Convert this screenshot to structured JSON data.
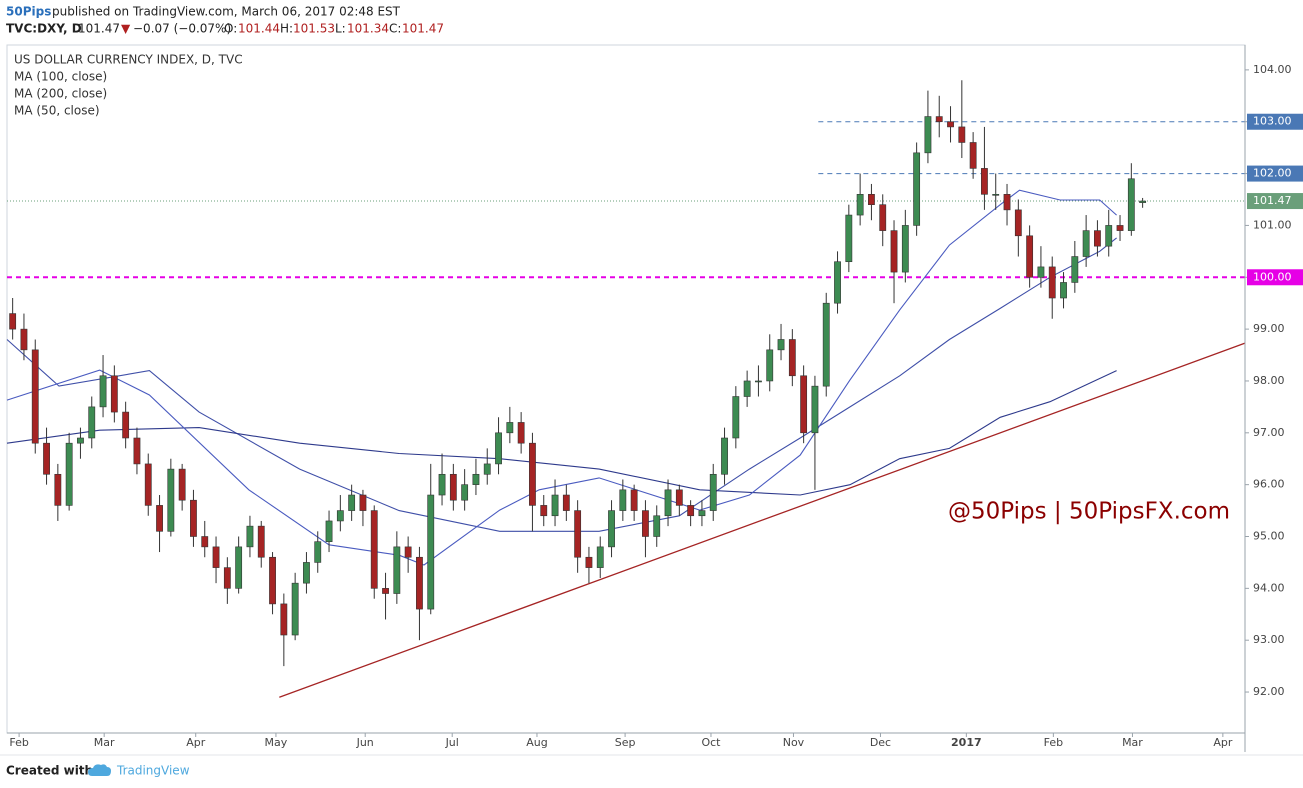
{
  "header": {
    "author": "50Pips",
    "published": "published on TradingView.com, March 06, 2017 02:48 EST",
    "symbol": "TVC:DXY, D",
    "arrow": "▼",
    "change": "−0.07 (−0.07%)",
    "open_label": "O:",
    "high_label": "H:",
    "low_label": "L:",
    "close_label": "C:"
  },
  "chart_data": {
    "type": "candlestick",
    "title": "US DOLLAR CURRENCY INDEX, D, TVC",
    "up_color": "#3d8b52",
    "down_color": "#a52424",
    "candles": [
      [
        99.3,
        99.6,
        98.8,
        99.0
      ],
      [
        99.0,
        99.3,
        98.4,
        98.6
      ],
      [
        98.6,
        98.8,
        96.6,
        96.8
      ],
      [
        96.8,
        97.1,
        96.0,
        96.2
      ],
      [
        96.2,
        96.4,
        95.3,
        95.6
      ],
      [
        95.6,
        97.0,
        95.5,
        96.8
      ],
      [
        96.8,
        97.1,
        96.5,
        96.9
      ],
      [
        96.9,
        97.7,
        96.7,
        97.5
      ],
      [
        97.5,
        98.5,
        97.3,
        98.1
      ],
      [
        98.1,
        98.3,
        97.2,
        97.4
      ],
      [
        97.4,
        97.6,
        96.7,
        96.9
      ],
      [
        96.9,
        97.1,
        96.2,
        96.4
      ],
      [
        96.4,
        96.6,
        95.4,
        95.6
      ],
      [
        95.6,
        95.8,
        94.7,
        95.1
      ],
      [
        95.1,
        96.5,
        95.0,
        96.3
      ],
      [
        96.3,
        96.4,
        95.5,
        95.7
      ],
      [
        95.7,
        95.9,
        94.8,
        95.0
      ],
      [
        95.0,
        95.3,
        94.6,
        94.8
      ],
      [
        94.8,
        95.0,
        94.1,
        94.4
      ],
      [
        94.4,
        94.6,
        93.7,
        94.0
      ],
      [
        94.0,
        95.0,
        93.9,
        94.8
      ],
      [
        94.8,
        95.4,
        94.6,
        95.2
      ],
      [
        95.2,
        95.3,
        94.4,
        94.6
      ],
      [
        94.6,
        94.7,
        93.5,
        93.7
      ],
      [
        93.7,
        93.9,
        92.5,
        93.1
      ],
      [
        93.1,
        94.3,
        93.0,
        94.1
      ],
      [
        94.1,
        94.7,
        93.9,
        94.5
      ],
      [
        94.5,
        95.1,
        94.3,
        94.9
      ],
      [
        94.9,
        95.5,
        94.7,
        95.3
      ],
      [
        95.3,
        95.8,
        95.1,
        95.5
      ],
      [
        95.5,
        96.0,
        95.3,
        95.8
      ],
      [
        95.8,
        95.9,
        95.2,
        95.5
      ],
      [
        95.5,
        95.6,
        93.8,
        94.0
      ],
      [
        94.0,
        94.3,
        93.4,
        93.9
      ],
      [
        93.9,
        95.1,
        93.7,
        94.8
      ],
      [
        94.8,
        95.0,
        94.3,
        94.6
      ],
      [
        94.6,
        94.8,
        93.0,
        93.6
      ],
      [
        93.6,
        96.4,
        93.5,
        95.8
      ],
      [
        95.8,
        96.6,
        95.6,
        96.2
      ],
      [
        96.2,
        96.4,
        95.5,
        95.7
      ],
      [
        95.7,
        96.3,
        95.5,
        96.0
      ],
      [
        96.0,
        96.5,
        95.8,
        96.2
      ],
      [
        96.2,
        96.7,
        96.0,
        96.4
      ],
      [
        96.4,
        97.3,
        96.2,
        97.0
      ],
      [
        97.0,
        97.5,
        96.8,
        97.2
      ],
      [
        97.2,
        97.4,
        96.6,
        96.8
      ],
      [
        96.8,
        97.0,
        95.1,
        95.6
      ],
      [
        95.6,
        95.8,
        95.2,
        95.4
      ],
      [
        95.4,
        96.1,
        95.2,
        95.8
      ],
      [
        95.8,
        96.0,
        95.3,
        95.5
      ],
      [
        95.5,
        95.7,
        94.3,
        94.6
      ],
      [
        94.6,
        94.8,
        94.1,
        94.4
      ],
      [
        94.4,
        95.0,
        94.2,
        94.8
      ],
      [
        94.8,
        95.7,
        94.6,
        95.5
      ],
      [
        95.5,
        96.1,
        95.3,
        95.9
      ],
      [
        95.9,
        96.0,
        95.3,
        95.5
      ],
      [
        95.5,
        95.7,
        94.6,
        95.0
      ],
      [
        95.0,
        95.6,
        94.8,
        95.4
      ],
      [
        95.4,
        96.1,
        95.2,
        95.9
      ],
      [
        95.9,
        96.0,
        95.4,
        95.6
      ],
      [
        95.6,
        95.7,
        95.2,
        95.4
      ],
      [
        95.4,
        95.7,
        95.2,
        95.5
      ],
      [
        95.5,
        96.4,
        95.3,
        96.2
      ],
      [
        96.2,
        97.1,
        96.0,
        96.9
      ],
      [
        96.9,
        97.9,
        96.7,
        97.7
      ],
      [
        97.7,
        98.2,
        97.5,
        98.0
      ],
      [
        98.0,
        98.3,
        97.7,
        98.0
      ],
      [
        98.0,
        98.9,
        97.8,
        98.6
      ],
      [
        98.6,
        99.1,
        98.4,
        98.8
      ],
      [
        98.8,
        99.0,
        97.9,
        98.1
      ],
      [
        98.1,
        98.3,
        96.8,
        97.0
      ],
      [
        97.0,
        98.1,
        95.9,
        97.9
      ],
      [
        97.9,
        99.7,
        97.7,
        99.5
      ],
      [
        99.5,
        100.5,
        99.3,
        100.3
      ],
      [
        100.3,
        101.4,
        100.1,
        101.2
      ],
      [
        101.2,
        102.0,
        101.0,
        101.6
      ],
      [
        101.6,
        101.8,
        101.1,
        101.4
      ],
      [
        101.4,
        101.6,
        100.6,
        100.9
      ],
      [
        100.9,
        101.1,
        99.5,
        100.1
      ],
      [
        100.1,
        101.3,
        99.9,
        101.0
      ],
      [
        101.0,
        102.6,
        100.8,
        102.4
      ],
      [
        102.4,
        103.6,
        102.2,
        103.1
      ],
      [
        103.1,
        103.5,
        102.7,
        103.0
      ],
      [
        103.0,
        103.3,
        102.6,
        102.9
      ],
      [
        102.9,
        103.8,
        102.3,
        102.6
      ],
      [
        102.6,
        102.8,
        101.9,
        102.1
      ],
      [
        102.1,
        102.9,
        101.3,
        101.6
      ],
      [
        101.6,
        102.0,
        101.3,
        101.6
      ],
      [
        101.6,
        101.8,
        101.0,
        101.3
      ],
      [
        101.3,
        101.5,
        100.4,
        100.8
      ],
      [
        100.8,
        101.0,
        99.8,
        100.0
      ],
      [
        100.0,
        100.6,
        99.8,
        100.2
      ],
      [
        100.2,
        100.4,
        99.2,
        99.6
      ],
      [
        99.6,
        100.1,
        99.4,
        99.9
      ],
      [
        99.9,
        100.7,
        99.7,
        100.4
      ],
      [
        100.4,
        101.2,
        100.2,
        100.9
      ],
      [
        100.9,
        101.1,
        100.4,
        100.6
      ],
      [
        100.6,
        101.3,
        100.4,
        101.0
      ],
      [
        101.0,
        101.2,
        100.7,
        100.9
      ],
      [
        100.9,
        102.2,
        100.8,
        101.9
      ],
      [
        101.44,
        101.53,
        101.34,
        101.47
      ]
    ],
    "series": [
      {
        "name": "MA (100, close)",
        "color": "#3f4fa8",
        "x": [
          -0.5,
          4.1,
          12.1,
          16.5,
          25.4,
          34.2,
          43.1,
          51.9,
          59.0,
          65.2,
          69.7,
          74.1,
          78.5,
          82.9,
          87.4,
          91.8,
          96.2,
          97.7
        ],
        "values": [
          98.8,
          97.9,
          98.2,
          97.4,
          96.3,
          95.5,
          95.1,
          95.1,
          95.4,
          96.3,
          96.9,
          97.5,
          98.1,
          98.8,
          99.4,
          100.0,
          100.5,
          100.76
        ]
      },
      {
        "name": "MA (200, close)",
        "color": "#2e3a8c",
        "x": [
          -0.5,
          7.7,
          16.5,
          25.4,
          34.2,
          43.1,
          51.9,
          60.8,
          69.7,
          74.1,
          78.5,
          82.9,
          87.4,
          91.8,
          97.7
        ],
        "values": [
          96.8,
          97.05,
          97.1,
          96.8,
          96.6,
          96.5,
          96.3,
          95.9,
          95.8,
          96.0,
          96.5,
          96.7,
          97.3,
          97.6,
          98.2
        ]
      },
      {
        "name": "MA (50, close)",
        "color": "#4a5bc0",
        "x": [
          -0.5,
          7.7,
          12.1,
          20.9,
          28.0,
          34.2,
          36.4,
          43.1,
          46.6,
          51.9,
          60.8,
          65.2,
          69.7,
          74.1,
          78.5,
          82.9,
          87.4,
          89.1,
          92.7,
          96.2,
          97.7
        ],
        "values": [
          97.63,
          98.21,
          97.73,
          95.9,
          94.84,
          94.64,
          94.45,
          95.51,
          95.9,
          96.13,
          95.51,
          95.8,
          96.57,
          98.02,
          99.37,
          100.62,
          101.4,
          101.68,
          101.49,
          101.49,
          101.2
        ]
      }
    ],
    "levels": [
      {
        "value": 103,
        "label": "103.00",
        "color": "#4a78b5",
        "style": "dashed",
        "start": 71.3
      },
      {
        "value": 102,
        "label": "102.00",
        "color": "#4a78b5",
        "style": "dashed",
        "start": 71.3
      },
      {
        "value": 100,
        "label": "100.00",
        "color": "#e600e6",
        "style": "dashed"
      }
    ],
    "last_price_color": "#6a9f7a",
    "trendline": {
      "x": [
        23.6,
        109.06
      ],
      "y": [
        91.9,
        98.73
      ],
      "color": "#a52424"
    },
    "annotation": "@50Pips | 50PipsFX.com",
    "xlim": [
      -0.5,
      109.06
    ],
    "ylim": [
      91.21,
      104.48
    ],
    "xticks": [
      {
        "value": 0.57,
        "label": "Feb"
      },
      {
        "value": 8.1,
        "label": "Mar"
      },
      {
        "value": 16.2,
        "label": "Apr"
      },
      {
        "value": 23.3,
        "label": "May"
      },
      {
        "value": 31.2,
        "label": "Jun"
      },
      {
        "value": 38.9,
        "label": "Jul"
      },
      {
        "value": 46.4,
        "label": "Aug"
      },
      {
        "value": 54.2,
        "label": "Sep"
      },
      {
        "value": 61.8,
        "label": "Oct"
      },
      {
        "value": 69.1,
        "label": "Nov"
      },
      {
        "value": 76.8,
        "label": "Dec"
      },
      {
        "value": 84.4,
        "label": "2017"
      },
      {
        "value": 92.1,
        "label": "Feb"
      },
      {
        "value": 99.1,
        "label": "Mar"
      },
      {
        "value": 107.1,
        "label": "Apr"
      }
    ],
    "yticks": [
      {
        "value": 92,
        "label": "92.00"
      },
      {
        "value": 93,
        "label": "93.00"
      },
      {
        "value": 94,
        "label": "94.00"
      },
      {
        "value": 95,
        "label": "95.00"
      },
      {
        "value": 96,
        "label": "96.00"
      },
      {
        "value": 97,
        "label": "97.00"
      },
      {
        "value": 98,
        "label": "98.00"
      },
      {
        "value": 99,
        "label": "99.00"
      },
      {
        "value": 100,
        "label": "100.00"
      },
      {
        "value": 101,
        "label": "101.00"
      },
      {
        "value": 102,
        "label": "102.00"
      },
      {
        "value": 103,
        "label": "103.00"
      },
      {
        "value": 104,
        "label": "104.00"
      }
    ]
  },
  "footer": {
    "created": "Created with",
    "brand": "TradingView"
  }
}
